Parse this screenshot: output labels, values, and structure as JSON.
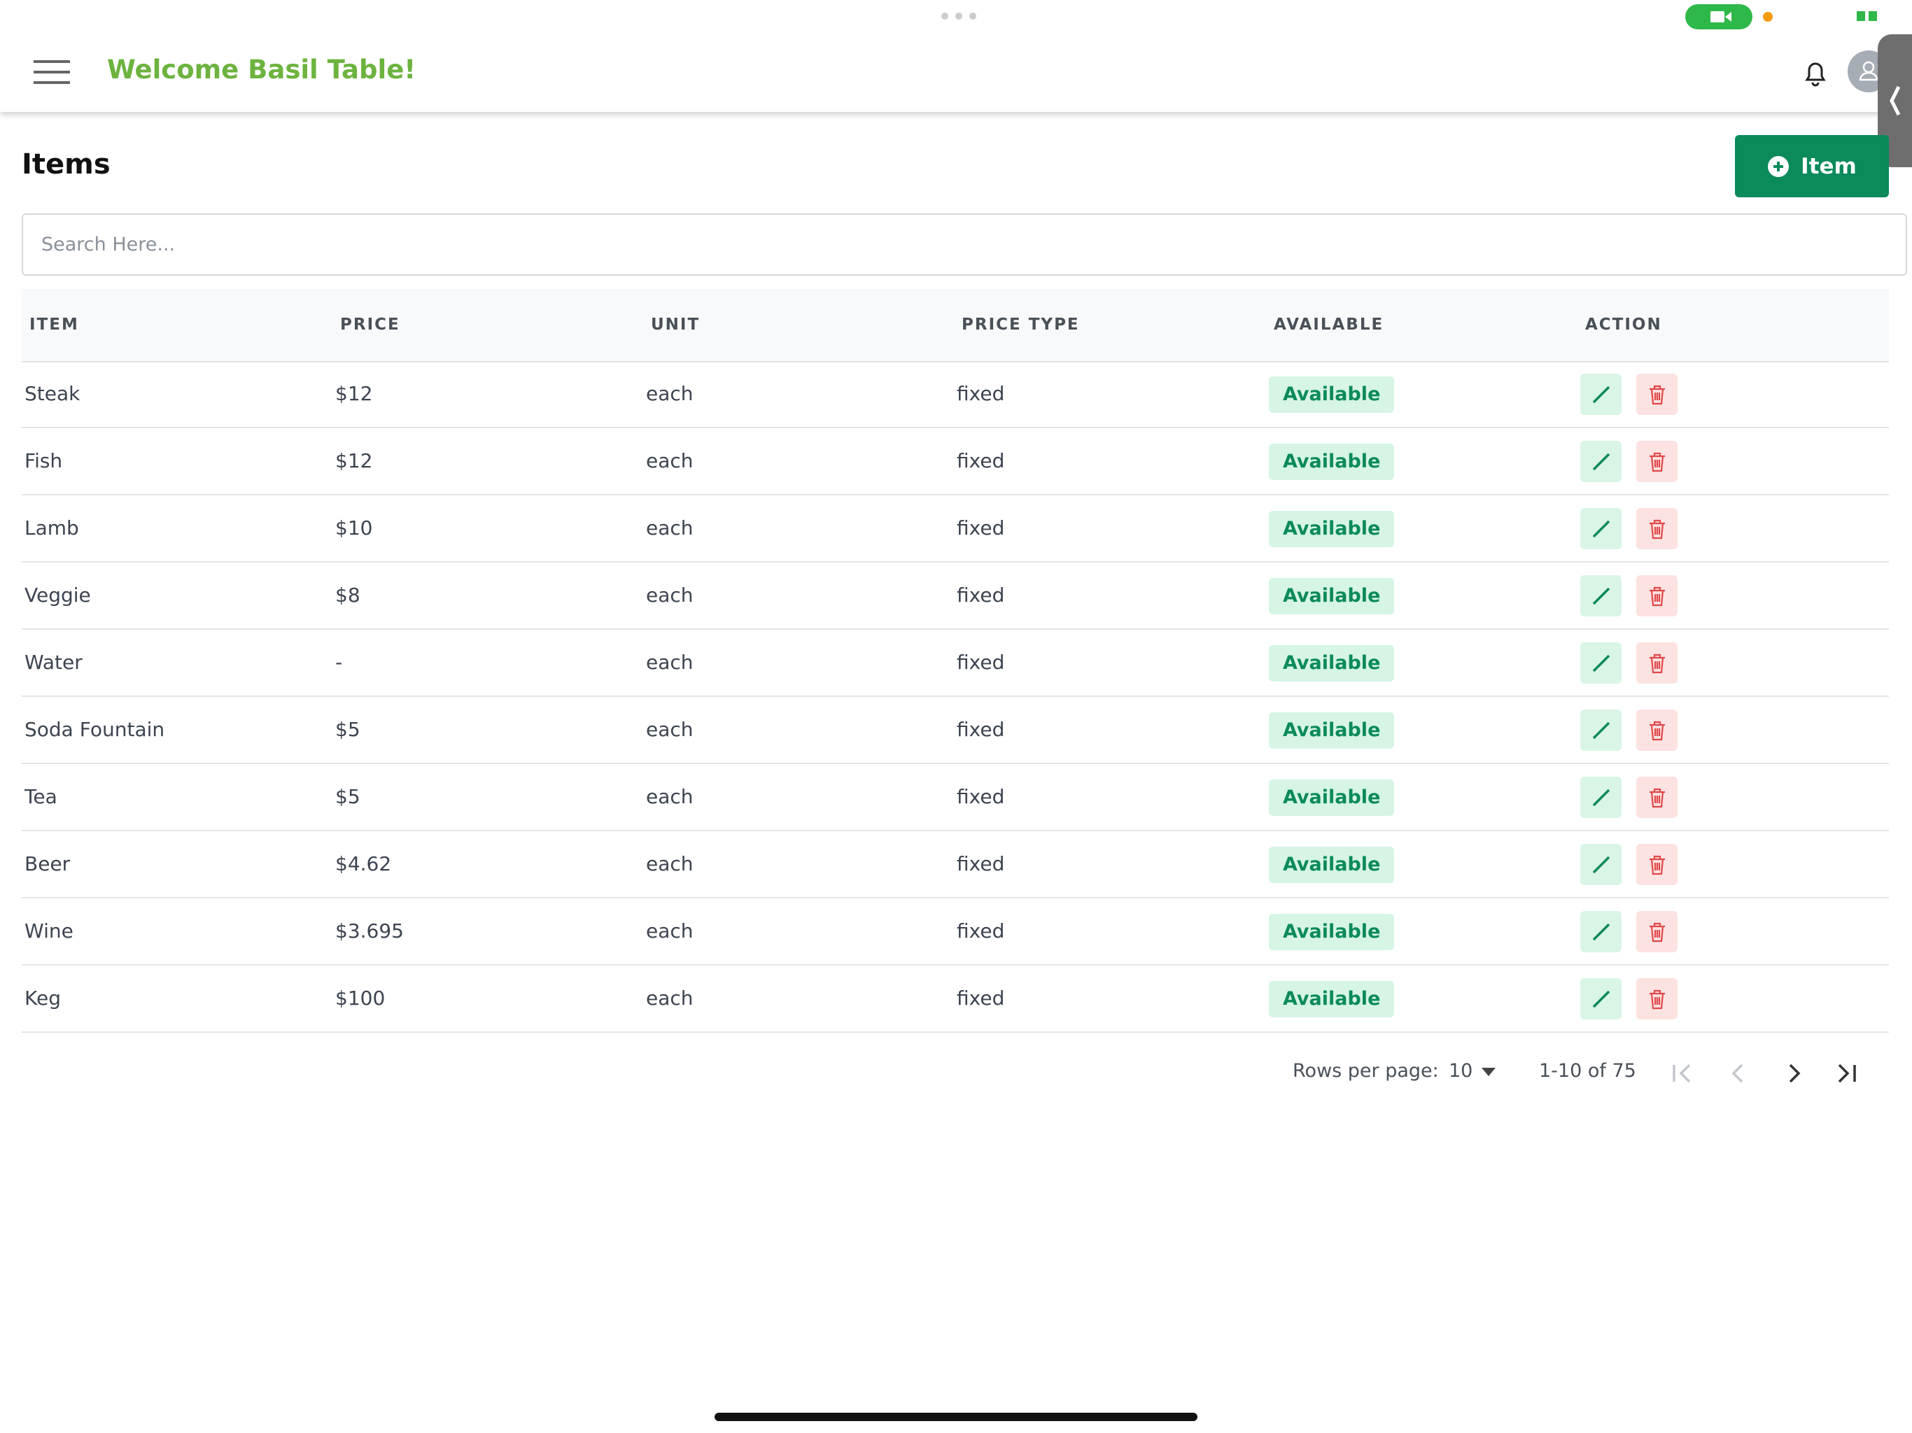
{
  "header": {
    "title": "Welcome Basil Table!"
  },
  "page": {
    "title": "Items",
    "add_button": "Item"
  },
  "search": {
    "placeholder": "Search Here..."
  },
  "table": {
    "columns": [
      "ITEM",
      "PRICE",
      "UNIT",
      "PRICE TYPE",
      "AVAILABLE",
      "ACTION"
    ],
    "rows": [
      [
        "Steak",
        "$12",
        "each",
        "fixed",
        "Available"
      ],
      [
        "Fish",
        "$12",
        "each",
        "fixed",
        "Available"
      ],
      [
        "Lamb",
        "$10",
        "each",
        "fixed",
        "Available"
      ],
      [
        "Veggie",
        "$8",
        "each",
        "fixed",
        "Available"
      ],
      [
        "Water",
        "-",
        "each",
        "fixed",
        "Available"
      ],
      [
        "Soda Fountain",
        "$5",
        "each",
        "fixed",
        "Available"
      ],
      [
        "Tea",
        "$5",
        "each",
        "fixed",
        "Available"
      ],
      [
        "Beer",
        "$4.62",
        "each",
        "fixed",
        "Available"
      ],
      [
        "Wine",
        "$3.695",
        "each",
        "fixed",
        "Available"
      ],
      [
        "Keg",
        "$100",
        "each",
        "fixed",
        "Available"
      ]
    ]
  },
  "pagination": {
    "rows_per_page_label": "Rows per page:",
    "rows_per_page_value": "10",
    "range": "1-10 of 75"
  }
}
